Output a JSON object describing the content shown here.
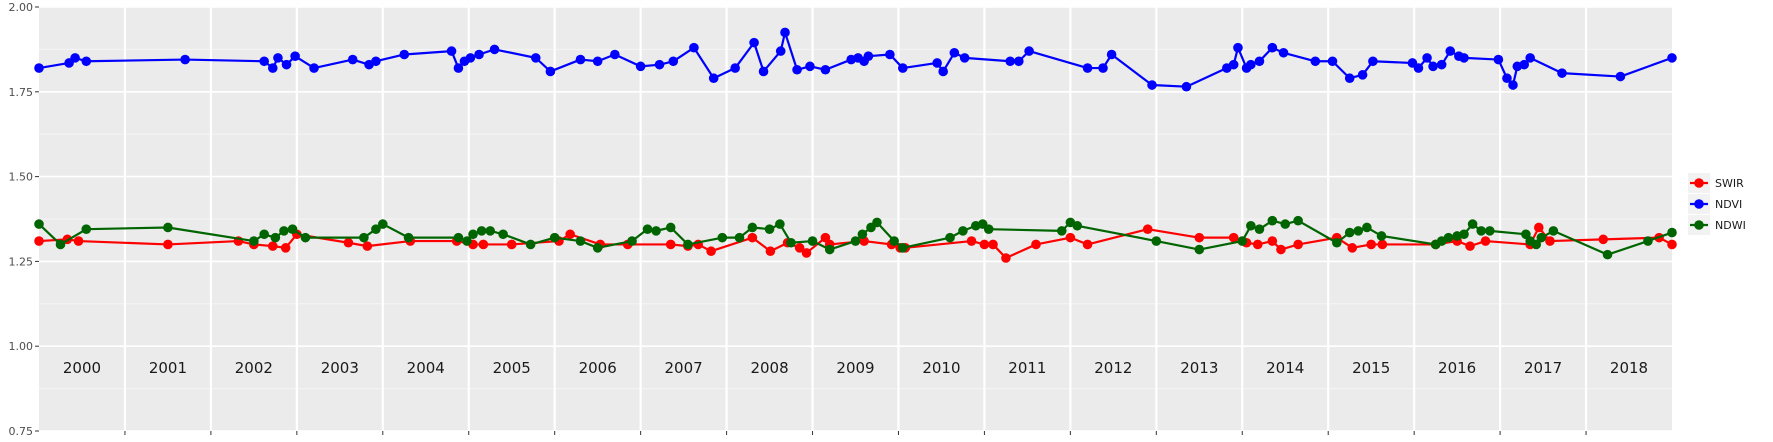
{
  "chart_data": {
    "type": "line",
    "title": "",
    "xlabel": "",
    "ylabel": "",
    "xlim": [
      2000.0,
      2019.0
    ],
    "ylim": [
      0.75,
      2.0
    ],
    "yticks": [
      "0.75",
      "1.00",
      "1.25",
      "1.50",
      "1.75",
      "2.00"
    ],
    "ytick_values": [
      0.75,
      1.0,
      1.25,
      1.5,
      1.75,
      2.0
    ],
    "year_labels": [
      "2000",
      "2001",
      "2002",
      "2003",
      "2004",
      "2005",
      "2006",
      "2007",
      "2008",
      "2009",
      "2010",
      "2011",
      "2012",
      "2013",
      "2014",
      "2015",
      "2016",
      "2017",
      "2018"
    ],
    "grid": true,
    "legend_position": "right",
    "legend": [
      "SWIR",
      "NDVI",
      "NDWI"
    ],
    "series": [
      {
        "name": "SWIR",
        "color": "#ff0000",
        "points": [
          [
            2000.0,
            1.31
          ],
          [
            2000.33,
            1.315
          ],
          [
            2000.46,
            1.31
          ],
          [
            2001.5,
            1.3
          ],
          [
            2002.32,
            1.31
          ],
          [
            2002.5,
            1.3
          ],
          [
            2002.72,
            1.295
          ],
          [
            2002.87,
            1.29
          ],
          [
            2003.0,
            1.33
          ],
          [
            2003.6,
            1.305
          ],
          [
            2003.82,
            1.295
          ],
          [
            2004.32,
            1.31
          ],
          [
            2004.86,
            1.31
          ],
          [
            2005.05,
            1.3
          ],
          [
            2005.17,
            1.3
          ],
          [
            2005.5,
            1.3
          ],
          [
            2006.05,
            1.31
          ],
          [
            2006.18,
            1.33
          ],
          [
            2006.53,
            1.3
          ],
          [
            2006.85,
            1.3
          ],
          [
            2007.35,
            1.3
          ],
          [
            2007.55,
            1.295
          ],
          [
            2007.67,
            1.3
          ],
          [
            2007.82,
            1.28
          ],
          [
            2008.3,
            1.32
          ],
          [
            2008.51,
            1.28
          ],
          [
            2008.71,
            1.305
          ],
          [
            2008.85,
            1.29
          ],
          [
            2008.93,
            1.275
          ],
          [
            2009.15,
            1.32
          ],
          [
            2009.2,
            1.3
          ],
          [
            2009.6,
            1.31
          ],
          [
            2009.92,
            1.3
          ],
          [
            2010.02,
            1.29
          ],
          [
            2010.08,
            1.29
          ],
          [
            2010.85,
            1.31
          ],
          [
            2011.0,
            1.3
          ],
          [
            2011.1,
            1.3
          ],
          [
            2011.25,
            1.26
          ],
          [
            2011.6,
            1.3
          ],
          [
            2012.0,
            1.32
          ],
          [
            2012.2,
            1.3
          ],
          [
            2012.9,
            1.345
          ],
          [
            2013.5,
            1.32
          ],
          [
            2013.9,
            1.32
          ],
          [
            2014.05,
            1.305
          ],
          [
            2014.18,
            1.3
          ],
          [
            2014.35,
            1.31
          ],
          [
            2014.45,
            1.285
          ],
          [
            2014.65,
            1.3
          ],
          [
            2015.1,
            1.32
          ],
          [
            2015.28,
            1.29
          ],
          [
            2015.5,
            1.3
          ],
          [
            2015.63,
            1.3
          ],
          [
            2016.25,
            1.3
          ],
          [
            2016.5,
            1.31
          ],
          [
            2016.65,
            1.295
          ],
          [
            2016.83,
            1.31
          ],
          [
            2017.35,
            1.3
          ],
          [
            2017.45,
            1.35
          ],
          [
            2017.58,
            1.31
          ],
          [
            2018.2,
            1.315
          ],
          [
            2018.85,
            1.32
          ],
          [
            2019.0,
            1.3
          ]
        ]
      },
      {
        "name": "NDVI",
        "color": "#0000ff",
        "points": [
          [
            2000.0,
            1.82
          ],
          [
            2000.35,
            1.835
          ],
          [
            2000.42,
            1.85
          ],
          [
            2000.55,
            1.84
          ],
          [
            2001.7,
            1.845
          ],
          [
            2002.62,
            1.84
          ],
          [
            2002.72,
            1.82
          ],
          [
            2002.78,
            1.85
          ],
          [
            2002.88,
            1.83
          ],
          [
            2002.98,
            1.855
          ],
          [
            2003.2,
            1.82
          ],
          [
            2003.65,
            1.845
          ],
          [
            2003.84,
            1.83
          ],
          [
            2003.92,
            1.84
          ],
          [
            2004.25,
            1.86
          ],
          [
            2004.8,
            1.87
          ],
          [
            2004.88,
            1.82
          ],
          [
            2004.95,
            1.84
          ],
          [
            2005.02,
            1.85
          ],
          [
            2005.12,
            1.86
          ],
          [
            2005.3,
            1.875
          ],
          [
            2005.78,
            1.85
          ],
          [
            2005.95,
            1.81
          ],
          [
            2006.3,
            1.845
          ],
          [
            2006.5,
            1.84
          ],
          [
            2006.7,
            1.86
          ],
          [
            2007.0,
            1.825
          ],
          [
            2007.22,
            1.83
          ],
          [
            2007.38,
            1.84
          ],
          [
            2007.62,
            1.88
          ],
          [
            2007.85,
            1.79
          ],
          [
            2008.1,
            1.82
          ],
          [
            2008.32,
            1.895
          ],
          [
            2008.43,
            1.81
          ],
          [
            2008.63,
            1.87
          ],
          [
            2008.68,
            1.925
          ],
          [
            2008.82,
            1.815
          ],
          [
            2008.97,
            1.825
          ],
          [
            2009.15,
            1.815
          ],
          [
            2009.45,
            1.845
          ],
          [
            2009.53,
            1.85
          ],
          [
            2009.6,
            1.84
          ],
          [
            2009.65,
            1.855
          ],
          [
            2009.9,
            1.86
          ],
          [
            2010.05,
            1.82
          ],
          [
            2010.45,
            1.835
          ],
          [
            2010.52,
            1.81
          ],
          [
            2010.65,
            1.865
          ],
          [
            2010.77,
            1.85
          ],
          [
            2011.3,
            1.84
          ],
          [
            2011.4,
            1.84
          ],
          [
            2011.52,
            1.87
          ],
          [
            2012.2,
            1.82
          ],
          [
            2012.38,
            1.82
          ],
          [
            2012.48,
            1.86
          ],
          [
            2012.95,
            1.77
          ],
          [
            2013.35,
            1.765
          ],
          [
            2013.82,
            1.82
          ],
          [
            2013.9,
            1.83
          ],
          [
            2013.95,
            1.88
          ],
          [
            2014.05,
            1.82
          ],
          [
            2014.1,
            1.83
          ],
          [
            2014.2,
            1.84
          ],
          [
            2014.35,
            1.88
          ],
          [
            2014.48,
            1.865
          ],
          [
            2014.85,
            1.84
          ],
          [
            2015.05,
            1.84
          ],
          [
            2015.25,
            1.79
          ],
          [
            2015.4,
            1.8
          ],
          [
            2015.52,
            1.84
          ],
          [
            2015.98,
            1.835
          ],
          [
            2016.05,
            1.82
          ],
          [
            2016.15,
            1.85
          ],
          [
            2016.22,
            1.825
          ],
          [
            2016.32,
            1.83
          ],
          [
            2016.42,
            1.87
          ],
          [
            2016.52,
            1.855
          ],
          [
            2016.58,
            1.85
          ],
          [
            2016.98,
            1.845
          ],
          [
            2017.08,
            1.79
          ],
          [
            2017.15,
            1.77
          ],
          [
            2017.2,
            1.825
          ],
          [
            2017.28,
            1.83
          ],
          [
            2017.35,
            1.85
          ],
          [
            2017.72,
            1.805
          ],
          [
            2018.4,
            1.795
          ],
          [
            2019.0,
            1.85
          ]
        ]
      },
      {
        "name": "NDWI",
        "color": "#006400",
        "points": [
          [
            2000.0,
            1.36
          ],
          [
            2000.25,
            1.3
          ],
          [
            2000.55,
            1.345
          ],
          [
            2001.5,
            1.35
          ],
          [
            2002.5,
            1.31
          ],
          [
            2002.62,
            1.33
          ],
          [
            2002.75,
            1.32
          ],
          [
            2002.85,
            1.34
          ],
          [
            2002.95,
            1.345
          ],
          [
            2003.1,
            1.32
          ],
          [
            2003.78,
            1.32
          ],
          [
            2003.92,
            1.345
          ],
          [
            2004.0,
            1.36
          ],
          [
            2004.3,
            1.32
          ],
          [
            2004.88,
            1.32
          ],
          [
            2004.98,
            1.31
          ],
          [
            2005.05,
            1.33
          ],
          [
            2005.15,
            1.34
          ],
          [
            2005.25,
            1.34
          ],
          [
            2005.4,
            1.33
          ],
          [
            2005.72,
            1.3
          ],
          [
            2006.0,
            1.32
          ],
          [
            2006.3,
            1.31
          ],
          [
            2006.5,
            1.29
          ],
          [
            2006.9,
            1.31
          ],
          [
            2007.08,
            1.345
          ],
          [
            2007.18,
            1.34
          ],
          [
            2007.35,
            1.35
          ],
          [
            2007.55,
            1.3
          ],
          [
            2007.95,
            1.32
          ],
          [
            2008.15,
            1.32
          ],
          [
            2008.3,
            1.35
          ],
          [
            2008.5,
            1.345
          ],
          [
            2008.62,
            1.36
          ],
          [
            2008.75,
            1.305
          ],
          [
            2009.0,
            1.31
          ],
          [
            2009.2,
            1.285
          ],
          [
            2009.5,
            1.31
          ],
          [
            2009.58,
            1.33
          ],
          [
            2009.68,
            1.35
          ],
          [
            2009.75,
            1.365
          ],
          [
            2009.95,
            1.31
          ],
          [
            2010.05,
            1.29
          ],
          [
            2010.6,
            1.32
          ],
          [
            2010.75,
            1.34
          ],
          [
            2010.9,
            1.355
          ],
          [
            2010.98,
            1.36
          ],
          [
            2011.05,
            1.345
          ],
          [
            2011.9,
            1.34
          ],
          [
            2012.0,
            1.365
          ],
          [
            2012.08,
            1.355
          ],
          [
            2013.0,
            1.31
          ],
          [
            2013.5,
            1.285
          ],
          [
            2014.0,
            1.31
          ],
          [
            2014.1,
            1.355
          ],
          [
            2014.2,
            1.345
          ],
          [
            2014.35,
            1.37
          ],
          [
            2014.5,
            1.36
          ],
          [
            2014.65,
            1.37
          ],
          [
            2015.1,
            1.305
          ],
          [
            2015.25,
            1.335
          ],
          [
            2015.35,
            1.34
          ],
          [
            2015.45,
            1.35
          ],
          [
            2015.62,
            1.325
          ],
          [
            2016.25,
            1.3
          ],
          [
            2016.32,
            1.31
          ],
          [
            2016.4,
            1.32
          ],
          [
            2016.5,
            1.325
          ],
          [
            2016.58,
            1.33
          ],
          [
            2016.68,
            1.36
          ],
          [
            2016.78,
            1.34
          ],
          [
            2016.88,
            1.34
          ],
          [
            2017.3,
            1.33
          ],
          [
            2017.35,
            1.31
          ],
          [
            2017.42,
            1.3
          ],
          [
            2017.48,
            1.32
          ],
          [
            2017.62,
            1.34
          ],
          [
            2018.25,
            1.27
          ],
          [
            2018.72,
            1.31
          ],
          [
            2019.0,
            1.335
          ]
        ]
      }
    ]
  }
}
